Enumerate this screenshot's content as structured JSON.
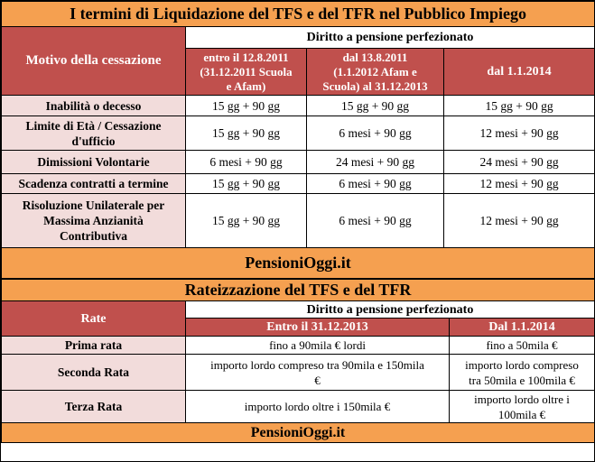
{
  "section1": {
    "title": "I termini di Liquidazione del TFS e del TFR nel Pubblico Impiego",
    "col_reason": "Motivo della cessazione",
    "group_header": "Diritto a pensione perfezionato",
    "col1_lines": [
      "entro il 12.8.2011",
      "(31.12.2011 Scuola",
      "e Afam)"
    ],
    "col2_lines": [
      "dal 13.8.2011",
      "(1.1.2012 Afam e",
      "Scuola) al 31.12.2013"
    ],
    "col3": "dal 1.1.2014",
    "rows": [
      {
        "label": [
          "Inabilità o decesso"
        ],
        "c1": "15 gg + 90 gg",
        "c2": "15 gg + 90 gg",
        "c3": "15 gg + 90 gg"
      },
      {
        "label": [
          "Limite di Età / Cessazione",
          "d'ufficio"
        ],
        "c1": "15 gg + 90 gg",
        "c2": "6 mesi + 90 gg",
        "c3": "12 mesi + 90 gg"
      },
      {
        "label": [
          "Dimissioni Volontarie"
        ],
        "c1": "6 mesi + 90 gg",
        "c2": "24 mesi + 90 gg",
        "c3": "24 mesi + 90 gg"
      },
      {
        "label": [
          "Scadenza contratti a termine"
        ],
        "c1": "15 gg + 90 gg",
        "c2": "6 mesi + 90 gg",
        "c3": "12 mesi + 90 gg"
      },
      {
        "label": [
          "Risoluzione Unilaterale per",
          "Massima Anzianità",
          "Contributiva"
        ],
        "c1": "15 gg + 90 gg",
        "c2": "6 mesi + 90 gg",
        "c3": "12 mesi + 90 gg"
      }
    ]
  },
  "brand1": "PensioniOggi.it",
  "section2": {
    "title": "Rateizzazione del TFS e del TFR",
    "col_rate": "Rate",
    "group_header": "Diritto a pensione perfezionato",
    "sub1": "Entro il 31.12.2013",
    "sub2": "Dal 1.1.2014",
    "rows": [
      {
        "label": "Prima rata",
        "c1": [
          "fino a 90mila € lordi"
        ],
        "c2": [
          "fino a 50mila €"
        ]
      },
      {
        "label": "Seconda Rata",
        "c1": [
          "importo lordo compreso tra 90mila e 150mila",
          "€"
        ],
        "c2": [
          "importo lordo compreso",
          "tra 50mila e 100mila €"
        ]
      },
      {
        "label": "Terza Rata",
        "c1": [
          "importo lordo oltre i 150mila €"
        ],
        "c2": [
          "importo lordo oltre i",
          "100mila €"
        ]
      }
    ]
  },
  "brand2": "PensioniOggi.it"
}
